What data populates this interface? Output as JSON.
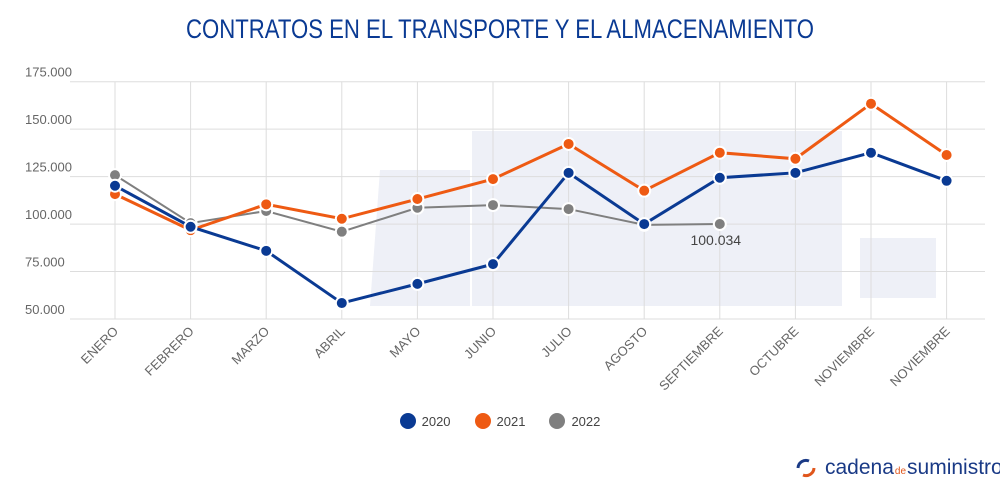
{
  "chart_data": {
    "type": "line",
    "title": "CONTRATOS EN EL TRANSPORTE Y EL ALMACENAMIENTO",
    "xlabel": "",
    "ylabel": "",
    "ylim": [
      50000,
      175000
    ],
    "yticks": [
      "175.000",
      "150.000",
      "125.000",
      "100.000",
      "75.000",
      "50.000"
    ],
    "ytick_values": [
      175000,
      150000,
      125000,
      100000,
      75000,
      50000
    ],
    "categories": [
      "ENERO",
      "FEBRERO",
      "MARZO",
      "ABRIL",
      "MAYO",
      "JUNIO",
      "JULIO",
      "AGOSTO",
      "SEPTIEMBRE",
      "OCTUBRE",
      "NOVIEMBRE",
      "NOVIEMBRE"
    ],
    "grid": true,
    "legend_position": "bottom-center",
    "series": [
      {
        "name": "2020",
        "color": "#0a3a93",
        "values": [
          120200,
          98600,
          85900,
          58400,
          68500,
          78900,
          127000,
          100000,
          124400,
          127000,
          137600,
          122800
        ]
      },
      {
        "name": "2021",
        "color": "#ee5a13",
        "values": [
          115800,
          96800,
          110400,
          102800,
          113200,
          123700,
          142200,
          117600,
          137600,
          134400,
          163400,
          136400
        ]
      },
      {
        "name": "2022",
        "color": "#7f7f7f",
        "values": [
          125800,
          100500,
          106900,
          96000,
          108600,
          110000,
          107900,
          99600,
          100034,
          null,
          null,
          null
        ]
      }
    ],
    "annotations": [
      {
        "series": "2022",
        "category_index": 8,
        "text": "100.034"
      }
    ]
  },
  "brand": {
    "part1": "cadena",
    "part2": "de",
    "part3": "suministro"
  }
}
